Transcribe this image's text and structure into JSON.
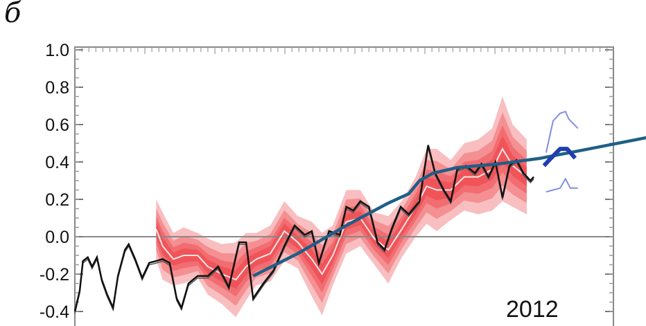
{
  "panel_label": "б",
  "chart_data": {
    "type": "line",
    "title": "",
    "xlabel": "",
    "ylabel": "",
    "ylim": [
      -0.4,
      1.0
    ],
    "xlim": [
      0,
      100
    ],
    "yticks": [
      "1.0",
      "0.8",
      "0.6",
      "0.4",
      "0.2",
      "0.0",
      "-0.2",
      "-0.4"
    ],
    "grid": false,
    "zero_line": true,
    "annotation": "2012",
    "colors": {
      "observed": "#111111",
      "reconstruction_band": "#e8141b",
      "reconstruction_mean": "#ffffff",
      "trend": "#1e5f86",
      "forecast": "#1f3fae",
      "forecast_range": "#7f8fe0"
    },
    "series": [
      {
        "key": "observed",
        "x": [
          0,
          0.9,
          1.5,
          2.4,
          3.2,
          4.1,
          5.0,
          6.0,
          7.1,
          8.0,
          9.3,
          10.0,
          11.2,
          12.5,
          13.8,
          15.1,
          16.3,
          17.6,
          18.9,
          19.8,
          21.1,
          22.8,
          24.7,
          26.6,
          28.6,
          30.5,
          31.8,
          33.1,
          35.0,
          36.9,
          38.9,
          40.8,
          42.7,
          44.0,
          45.3,
          47.2,
          49.2,
          50.4,
          51.7,
          53.0,
          54.6,
          56.2,
          57.5,
          58.8,
          60.5,
          62.0,
          64.0,
          65.6,
          66.9,
          68.5,
          69.8,
          71.0,
          72.6,
          74.3,
          75.5,
          76.8,
          78.1,
          79.4,
          80.7,
          82.0,
          83.3,
          84.6,
          85.2
        ],
        "y": [
          -0.4,
          -0.29,
          -0.13,
          -0.11,
          -0.16,
          -0.11,
          -0.23,
          -0.31,
          -0.38,
          -0.21,
          -0.07,
          -0.04,
          -0.12,
          -0.22,
          -0.14,
          -0.13,
          -0.12,
          -0.14,
          -0.33,
          -0.38,
          -0.25,
          -0.21,
          -0.21,
          -0.16,
          -0.27,
          -0.03,
          -0.03,
          -0.33,
          -0.25,
          -0.18,
          -0.05,
          0.06,
          0.01,
          0.03,
          -0.14,
          0.03,
          0.01,
          0.16,
          0.14,
          0.19,
          0.16,
          -0.03,
          -0.07,
          0.04,
          0.16,
          0.12,
          0.19,
          0.49,
          0.34,
          0.25,
          0.19,
          0.36,
          0.38,
          0.34,
          0.39,
          0.32,
          0.4,
          0.21,
          0.38,
          0.41,
          0.34,
          0.3,
          0.32
        ]
      },
      {
        "key": "reconstruction",
        "x": [
          15.1,
          16.3,
          18.3,
          20.2,
          22.8,
          24.7,
          27.3,
          29.9,
          31.8,
          33.7,
          36.3,
          38.9,
          41.4,
          44.0,
          45.9,
          47.9,
          50.4,
          53.0,
          55.6,
          58.2,
          60.7,
          63.3,
          65.3,
          67.2,
          69.8,
          72.3,
          74.9,
          77.5,
          79.4,
          81.3,
          83.9
        ],
        "y": [
          0.04,
          -0.05,
          -0.12,
          -0.1,
          -0.1,
          -0.16,
          -0.2,
          -0.23,
          -0.16,
          -0.12,
          -0.09,
          0.03,
          -0.03,
          -0.12,
          -0.2,
          -0.1,
          0.08,
          0.1,
          -0.01,
          -0.07,
          0.04,
          0.16,
          0.27,
          0.25,
          0.25,
          0.32,
          0.32,
          0.36,
          0.47,
          0.38,
          0.32
        ],
        "spread": [
          0.16,
          0.18,
          0.14,
          0.15,
          0.12,
          0.15,
          0.16,
          0.2,
          0.18,
          0.14,
          0.15,
          0.16,
          0.14,
          0.2,
          0.22,
          0.16,
          0.17,
          0.15,
          0.14,
          0.18,
          0.15,
          0.16,
          0.2,
          0.22,
          0.16,
          0.18,
          0.2,
          0.22,
          0.28,
          0.22,
          0.2
        ]
      },
      {
        "key": "trend",
        "x": [
          33.1,
          41.4,
          50.4,
          58.2,
          62.0,
          64.0,
          66.5,
          71.0,
          78.8,
          86.5,
          95.5,
          106.1
        ],
        "y": [
          -0.21,
          -0.09,
          0.06,
          0.18,
          0.23,
          0.3,
          0.34,
          0.37,
          0.39,
          0.42,
          0.47,
          0.53
        ]
      },
      {
        "key": "forecast",
        "x": [
          87.1,
          88.4,
          90.1,
          91.4,
          92.9
        ],
        "y": [
          0.38,
          0.42,
          0.47,
          0.47,
          0.42
        ]
      },
      {
        "key": "forecast_upper",
        "x": [
          87.5,
          88.8,
          90.1,
          91.1,
          91.7,
          93.4
        ],
        "y": [
          0.45,
          0.62,
          0.66,
          0.67,
          0.63,
          0.58
        ]
      },
      {
        "key": "forecast_lower",
        "x": [
          87.5,
          88.8,
          90.1,
          91.1,
          92.0,
          93.4
        ],
        "y": [
          0.24,
          0.25,
          0.26,
          0.31,
          0.26,
          0.26
        ]
      }
    ]
  }
}
